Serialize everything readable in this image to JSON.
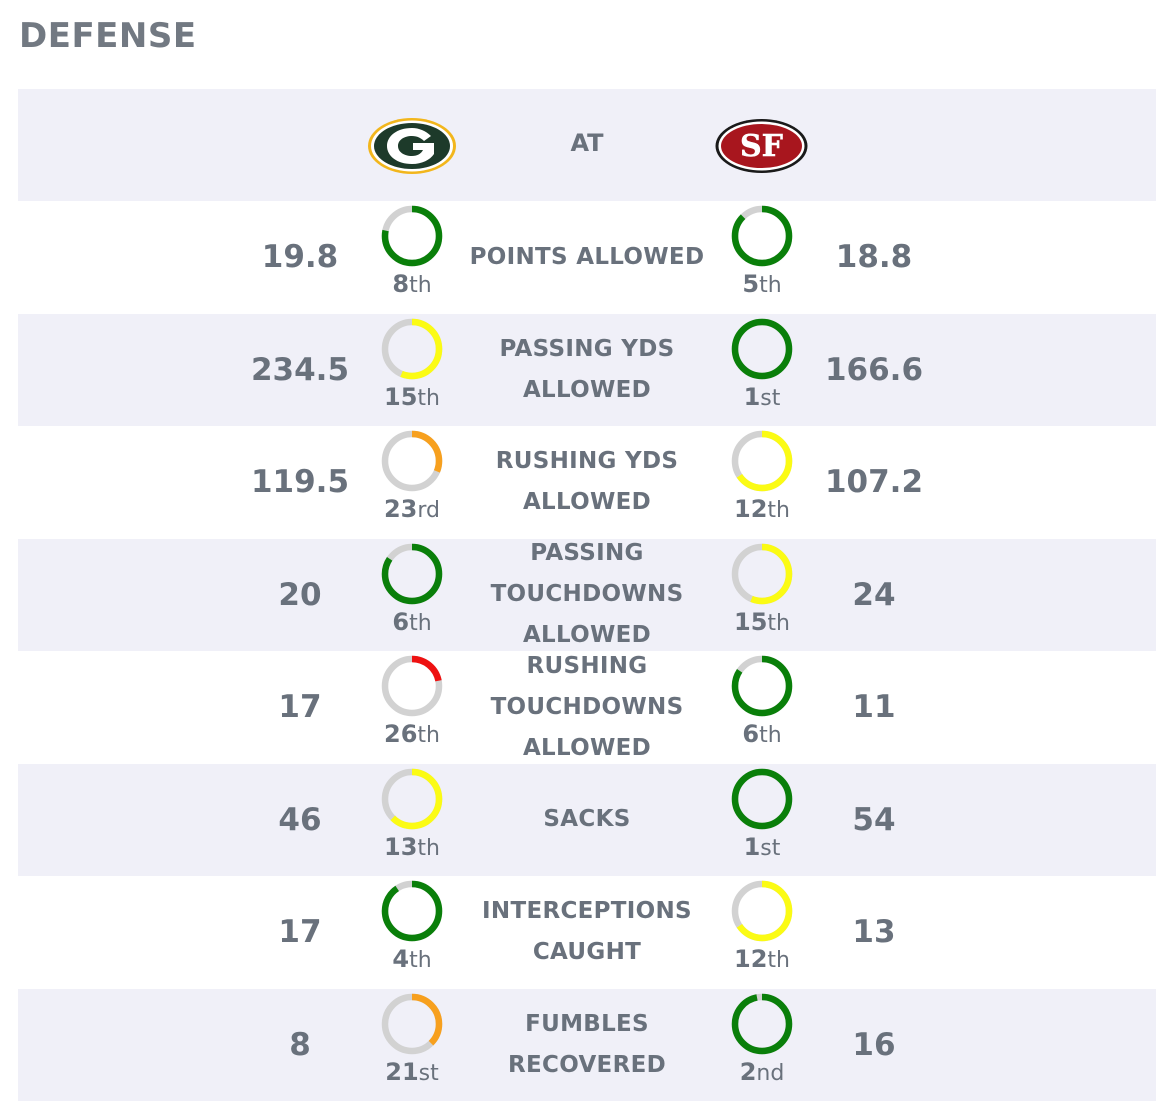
{
  "section": {
    "title": "DEFENSE"
  },
  "header": {
    "away_team": "GB",
    "home_team": "SF",
    "at_label": "AT",
    "away_logo_text": "G",
    "home_logo_text": "SF"
  },
  "colors": {
    "green": "#0a7f0a",
    "yellow": "#fbfb14",
    "orange": "#f7a01e",
    "red": "#ee1111",
    "track": "#d2d2d2",
    "packers_green": "#1d3a2a",
    "packers_gold": "#f2b61c",
    "niners_red": "#a8161e"
  },
  "stats": [
    {
      "label": "POINTS ALLOWED",
      "away": {
        "value": "19.8",
        "rank_num": "8",
        "rank_suffix": "th",
        "rank": 8,
        "color": "green"
      },
      "home": {
        "value": "18.8",
        "rank_num": "5",
        "rank_suffix": "th",
        "rank": 5,
        "color": "green"
      }
    },
    {
      "label": "PASSING YDS ALLOWED",
      "away": {
        "value": "234.5",
        "rank_num": "15",
        "rank_suffix": "th",
        "rank": 15,
        "color": "yellow"
      },
      "home": {
        "value": "166.6",
        "rank_num": "1",
        "rank_suffix": "st",
        "rank": 1,
        "color": "green"
      }
    },
    {
      "label": "RUSHING YDS ALLOWED",
      "away": {
        "value": "119.5",
        "rank_num": "23",
        "rank_suffix": "rd",
        "rank": 23,
        "color": "orange"
      },
      "home": {
        "value": "107.2",
        "rank_num": "12",
        "rank_suffix": "th",
        "rank": 12,
        "color": "yellow"
      }
    },
    {
      "label": "PASSING TOUCHDOWNS ALLOWED",
      "away": {
        "value": "20",
        "rank_num": "6",
        "rank_suffix": "th",
        "rank": 6,
        "color": "green"
      },
      "home": {
        "value": "24",
        "rank_num": "15",
        "rank_suffix": "th",
        "rank": 15,
        "color": "yellow"
      }
    },
    {
      "label": "RUSHING TOUCHDOWNS ALLOWED",
      "away": {
        "value": "17",
        "rank_num": "26",
        "rank_suffix": "th",
        "rank": 26,
        "color": "red"
      },
      "home": {
        "value": "11",
        "rank_num": "6",
        "rank_suffix": "th",
        "rank": 6,
        "color": "green"
      }
    },
    {
      "label": "SACKS",
      "away": {
        "value": "46",
        "rank_num": "13",
        "rank_suffix": "th",
        "rank": 13,
        "color": "yellow"
      },
      "home": {
        "value": "54",
        "rank_num": "1",
        "rank_suffix": "st",
        "rank": 1,
        "color": "green"
      }
    },
    {
      "label": "INTERCEPTIONS CAUGHT",
      "away": {
        "value": "17",
        "rank_num": "4",
        "rank_suffix": "th",
        "rank": 4,
        "color": "green"
      },
      "home": {
        "value": "13",
        "rank_num": "12",
        "rank_suffix": "th",
        "rank": 12,
        "color": "yellow"
      }
    },
    {
      "label": "FUMBLES RECOVERED",
      "away": {
        "value": "8",
        "rank_num": "21",
        "rank_suffix": "st",
        "rank": 21,
        "color": "orange"
      },
      "home": {
        "value": "16",
        "rank_num": "2",
        "rank_suffix": "nd",
        "rank": 2,
        "color": "green"
      }
    }
  ]
}
